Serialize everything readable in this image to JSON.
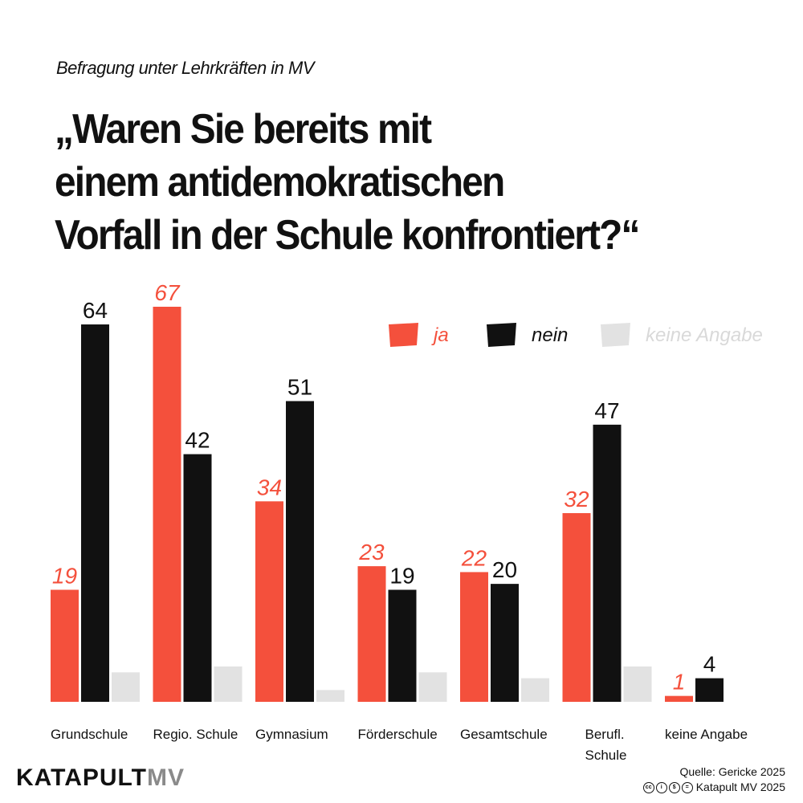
{
  "header": {
    "subtitle": "Befragung unter Lehrkräften in MV",
    "title_lines": [
      "„Waren Sie bereits mit",
      "einem antidemokratischen",
      "Vorfall in der Schule konfrontiert?“"
    ]
  },
  "chart_data": {
    "type": "bar",
    "categories": [
      "Grundschule",
      "Regio. Schule",
      "Gymnasium",
      "Förderschule",
      "Gesamtschule",
      "Berufl. Schule",
      "keine Angabe"
    ],
    "category_lines": [
      [
        "Grundschule"
      ],
      [
        "Regio. Schule"
      ],
      [
        "Gymnasium"
      ],
      [
        "Förderschule"
      ],
      [
        "Gesamtschule"
      ],
      [
        "Berufl.",
        "Schule"
      ],
      [
        "keine Angabe"
      ]
    ],
    "series": [
      {
        "name": "ja",
        "color": "#f4503c",
        "label_color": "#f4503c",
        "values": [
          19,
          67,
          34,
          23,
          22,
          32,
          1
        ],
        "show_labels": true
      },
      {
        "name": "nein",
        "color": "#111111",
        "label_color": "#111111",
        "values": [
          64,
          42,
          51,
          19,
          20,
          47,
          4
        ],
        "show_labels": true
      },
      {
        "name": "keine Angabe",
        "color": "#e2e2e2",
        "label_color": "#d9d9d9",
        "values": [
          5,
          6,
          2,
          5,
          4,
          6,
          0
        ],
        "show_labels": false
      }
    ],
    "ylim": [
      0,
      70
    ],
    "legend_position": "top-right",
    "grid": false
  },
  "footer": {
    "logo_main": "KATAPULT",
    "logo_suffix": "MV",
    "source": "Quelle: Gericke 2025",
    "license": "Katapult MV 2025"
  },
  "colors": {
    "ja": "#f4503c",
    "nein": "#111111",
    "keine_angabe": "#e2e2e2"
  }
}
